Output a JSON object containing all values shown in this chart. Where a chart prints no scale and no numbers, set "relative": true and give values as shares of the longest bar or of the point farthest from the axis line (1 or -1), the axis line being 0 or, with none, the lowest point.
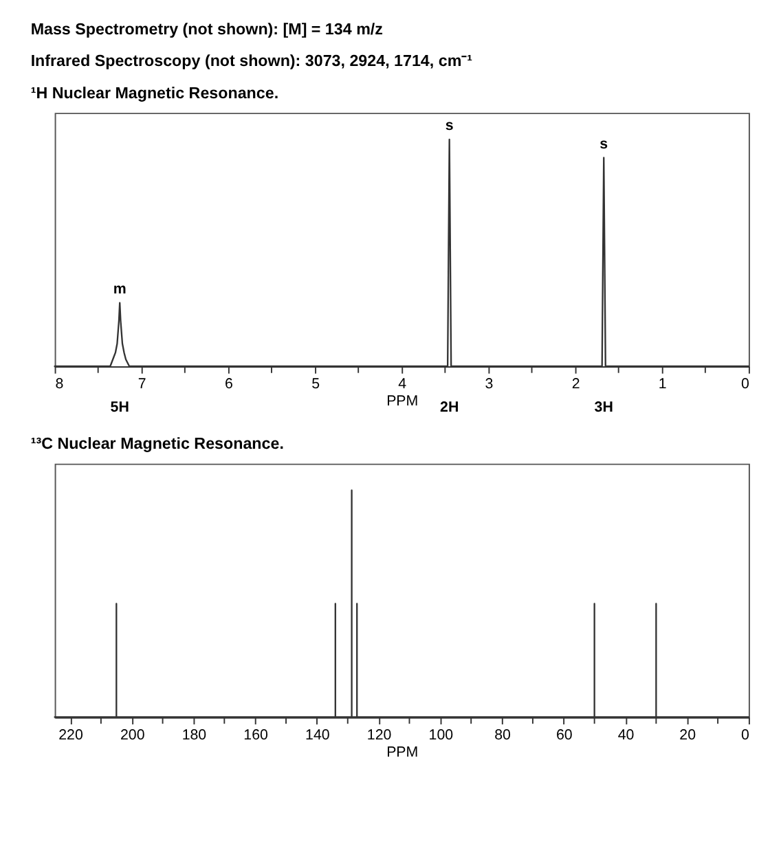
{
  "chart_data": [
    {
      "type": "line",
      "title": "¹H Nuclear Magnetic Resonance.",
      "xlabel": "PPM",
      "relative": true,
      "xlim": [
        8,
        0
      ],
      "xticks": [
        8,
        {
          "value": 7.5,
          "label": null
        },
        7,
        {
          "value": 6.5,
          "label": null
        },
        6,
        {
          "value": 5.5,
          "label": null
        },
        5,
        {
          "value": 4.5,
          "label": null
        },
        4,
        {
          "value": 3.5,
          "label": null
        },
        3,
        {
          "value": 2.5,
          "label": null
        },
        2,
        {
          "value": 1.5,
          "label": null
        },
        1,
        {
          "value": 0.5,
          "label": null
        },
        0
      ],
      "series": [
        {
          "color": "#333333",
          "x": [
            8,
            7.36,
            7.32,
            7.3,
            7.28,
            7.26,
            7.25,
            7.24,
            7.22,
            7.2,
            7.18,
            7.14,
            3.47,
            3.45,
            3.43,
            1.69,
            1.67,
            1.65,
            0
          ],
          "values": [
            0,
            0,
            0.04,
            0.06,
            0.1,
            0.2,
            0.28,
            0.2,
            0.1,
            0.06,
            0.03,
            0,
            0,
            1,
            0,
            0,
            0.92,
            0,
            0
          ]
        }
      ],
      "annotations": [
        "Mass Spectrometry (not shown): [M] = 134 m/z",
        "Infrared Spectroscopy (not shown): 3073, 2924, 1714, cm⁻¹",
        {
          "text": "m",
          "x": 7.25,
          "y": 0.28
        },
        {
          "text": "s",
          "x": 3.45,
          "y": 1
        },
        {
          "text": "s",
          "x": 1.67,
          "y": 0.92
        },
        "5H",
        "2H",
        "3H"
      ],
      "grid": false,
      "marker": "none"
    },
    {
      "type": "line",
      "title": "¹³C Nuclear Magnetic Resonance.",
      "xlabel": "PPM",
      "relative": true,
      "xlim": [
        225,
        0
      ],
      "xticks": [
        220,
        {
          "value": 210,
          "label": null
        },
        200,
        {
          "value": 190,
          "label": null
        },
        180,
        {
          "value": 170,
          "label": null
        },
        160,
        {
          "value": 150,
          "label": null
        },
        140,
        {
          "value": 130,
          "label": null
        },
        120,
        {
          "value": 110,
          "label": null
        },
        100,
        {
          "value": 90,
          "label": null
        },
        80,
        {
          "value": 70,
          "label": null
        },
        60,
        {
          "value": 50,
          "label": null
        },
        40,
        {
          "value": 30,
          "label": null
        },
        20,
        {
          "value": 10,
          "label": null
        },
        0
      ],
      "series": [
        {
          "color": "#333333",
          "x": [
            225,
            205,
            205,
            205,
            134,
            134,
            134,
            128.7,
            128.7,
            128.7,
            127,
            127,
            127,
            50,
            50,
            50,
            30,
            30,
            30,
            0
          ],
          "values": [
            0,
            0,
            0.5,
            0,
            0,
            0.5,
            0,
            0,
            1,
            0,
            0,
            0.5,
            0,
            0,
            0.5,
            0,
            0,
            0.5,
            0,
            0
          ]
        }
      ],
      "grid": false,
      "marker": "none"
    }
  ]
}
